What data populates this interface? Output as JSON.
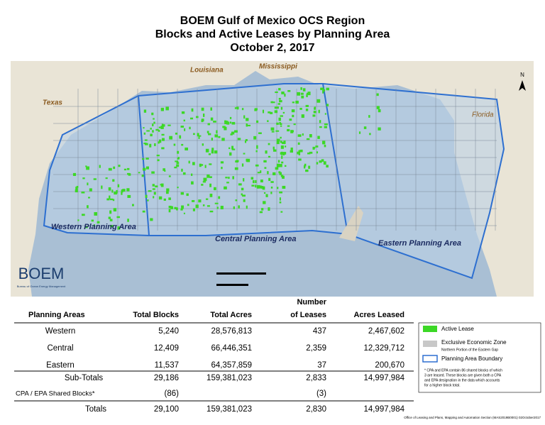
{
  "header": {
    "title": [
      "BOEM Gulf of Mexico OCS Region",
      "Blocks and Active Leases by Planning Area",
      "October 2, 2017"
    ]
  },
  "map": {
    "states": [
      "Texas",
      "Louisiana",
      "Mississippi",
      "Florida"
    ],
    "areas": [
      "Western Planning Area",
      "Central Planning Area",
      "Eastern Planning Area"
    ],
    "north": "N",
    "logo": "BOEM",
    "logo_sub": "Bureau of Ocean Energy Management"
  },
  "table": {
    "headers": [
      "Planning Areas",
      "Total Blocks",
      "Total Acres",
      "Number",
      "of Leases",
      "Acres Leased"
    ],
    "rows": [
      [
        "Western",
        "5,240",
        "28,576,813",
        "437",
        "2,467,602"
      ],
      [
        "Central",
        "12,409",
        "66,446,351",
        "2,359",
        "12,329,712"
      ],
      [
        "Eastern",
        "11,537",
        "64,357,859",
        "37",
        "200,670"
      ],
      [
        "Sub-Totals",
        "29,186",
        "159,381,023",
        "2,833",
        "14,997,984"
      ],
      [
        "CPA / EPA Shared Blocks*",
        "(86)",
        "",
        "(3)",
        ""
      ],
      [
        "Totals",
        "29,100",
        "159,381,023",
        "2,830",
        "14,997,984"
      ]
    ]
  },
  "legend": {
    "items": [
      "Active Lease",
      "Exclusive Economic Zone",
      "Northern Portion of the Eastern Gap",
      "Planning Area Boundary"
    ],
    "note": [
      "* CPA and EPA contain 86 shared blocks of which",
      "3 are leased. These blocks are given both a CPA",
      "and EPA designation in the data which accounts",
      "for a higher block total."
    ]
  },
  "footer": "Office of Leasing and Plans, Mapping and Automation Section (MAS2019B0001) 02October2017"
}
